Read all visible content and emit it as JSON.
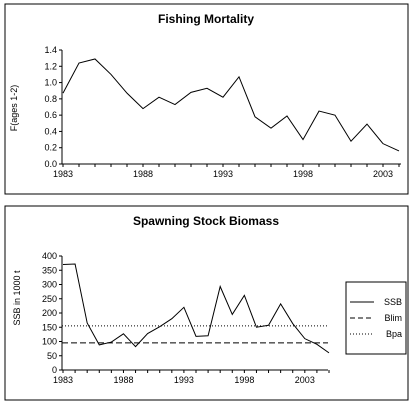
{
  "chart_data": [
    {
      "type": "line",
      "title": "Fishing Mortality",
      "xlabel": "",
      "ylabel": "F(ages 1-2)",
      "xlim": [
        1983,
        2004
      ],
      "ylim": [
        0,
        1.4
      ],
      "xticks": [
        "1983",
        "1988",
        "1993",
        "1998",
        "2003"
      ],
      "yticks": [
        "0.0",
        "0.2",
        "0.4",
        "0.6",
        "0.8",
        "1.0",
        "1.2",
        "1.4"
      ],
      "grid": false,
      "series": [
        {
          "x": [
            1983,
            1984,
            1985,
            1986,
            1987,
            1988,
            1989,
            1990,
            1991,
            1992,
            1993,
            1994,
            1995,
            1996,
            1997,
            1998,
            1999,
            2000,
            2001,
            2002,
            2003,
            2004
          ],
          "values": [
            0.87,
            1.24,
            1.29,
            1.1,
            0.87,
            0.68,
            0.82,
            0.73,
            0.88,
            0.93,
            0.82,
            1.07,
            0.58,
            0.44,
            0.59,
            0.3,
            0.65,
            0.6,
            0.28,
            0.49,
            0.25,
            0.16
          ],
          "color": "#000000"
        }
      ]
    },
    {
      "type": "line",
      "title": "Spawning Stock Biomass",
      "xlabel": "",
      "ylabel": "SSB in 1000 t",
      "xlim": [
        1983,
        2004
      ],
      "ylim": [
        0,
        400
      ],
      "xticks": [
        "1983",
        "1988",
        "1993",
        "1998",
        "2003"
      ],
      "yticks": [
        "0",
        "50",
        "100",
        "150",
        "200",
        "250",
        "300",
        "350",
        "400"
      ],
      "grid": false,
      "legend": {
        "placement": "right"
      },
      "series": [
        {
          "name": "SSB",
          "style": "solid",
          "x": [
            1983,
            1984,
            1985,
            1986,
            1987,
            1988,
            1989,
            1990,
            1991,
            1992,
            1993,
            1994,
            1995,
            1996,
            1997,
            1998,
            1999,
            2000,
            2001,
            2002,
            2003,
            2004,
            2005
          ],
          "values": [
            370,
            372,
            165,
            88,
            98,
            127,
            82,
            128,
            152,
            180,
            220,
            118,
            120,
            293,
            195,
            262,
            150,
            157,
            232,
            163,
            110,
            90,
            60
          ]
        },
        {
          "name": "Blim",
          "style": "dashed",
          "constant": 95
        },
        {
          "name": "Bpa",
          "style": "dotted",
          "constant": 155
        }
      ]
    }
  ]
}
